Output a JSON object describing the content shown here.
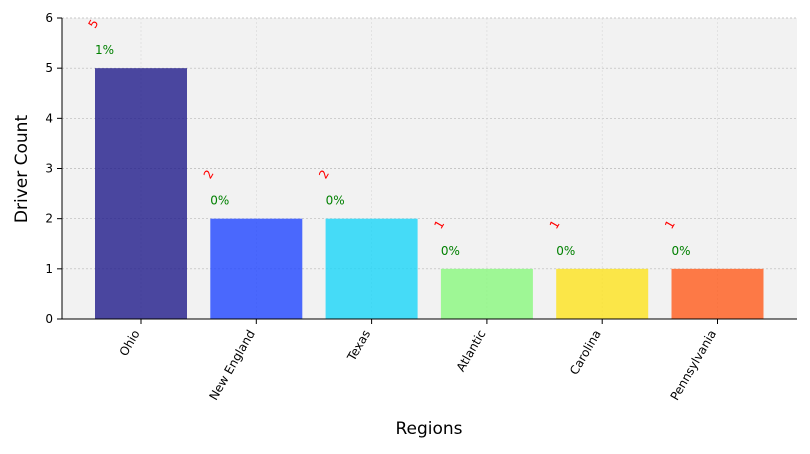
{
  "chart_data": {
    "type": "bar",
    "categories": [
      "Ohio",
      "New England",
      "Texas",
      "Atlantic",
      "Carolina",
      "Pennsylvania"
    ],
    "values": [
      5,
      2,
      2,
      1,
      1,
      1
    ],
    "value_labels": [
      "5",
      "2",
      "2",
      "1",
      "1",
      "1"
    ],
    "percent_labels": [
      "1%",
      "0%",
      "0%",
      "0%",
      "0%",
      "0%"
    ],
    "bar_colors": [
      "#1f1a8a",
      "#1f45ff",
      "#19d5f7",
      "#88f77d",
      "#fde21d",
      "#ff5a1a"
    ],
    "value_label_color": "#ff0000",
    "percent_label_color": "#008000",
    "background_color": "#f2f2f2",
    "xlabel": "Regions",
    "ylabel": "Driver Count",
    "ylim": [
      0,
      6
    ],
    "yticks": [
      "0",
      "1",
      "2",
      "3",
      "4",
      "5",
      "6"
    ],
    "grid": true,
    "legend": "none"
  }
}
